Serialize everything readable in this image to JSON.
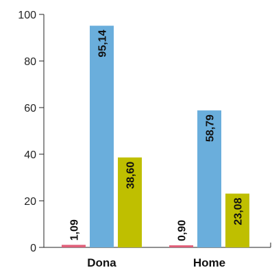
{
  "chart_data": {
    "type": "bar",
    "categories": [
      "Dona",
      "Home"
    ],
    "series": [
      {
        "values": [
          1.09,
          0.9
        ],
        "labels": [
          "1,09",
          "0,90"
        ],
        "color": "#e0607a"
      },
      {
        "values": [
          95.14,
          58.79
        ],
        "labels": [
          "95,14",
          "58,79"
        ],
        "color": "#6aaedc"
      },
      {
        "values": [
          38.6,
          23.08
        ],
        "labels": [
          "38,60",
          "23,08"
        ],
        "color": "#bfbf00"
      }
    ],
    "ylim": [
      0,
      100
    ],
    "yticks": [
      0,
      20,
      40,
      60,
      80,
      100
    ],
    "ytick_labels": [
      "0",
      "20",
      "40",
      "60",
      "80",
      "100"
    ],
    "title": "",
    "xlabel": "",
    "ylabel": "",
    "grid": false,
    "legend": "none"
  }
}
